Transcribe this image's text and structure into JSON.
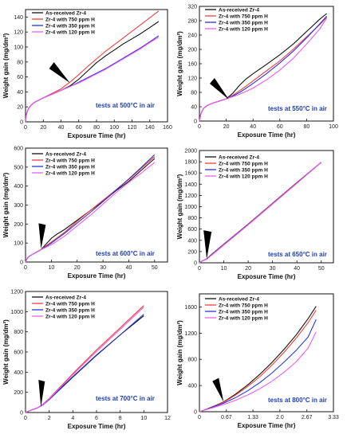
{
  "legend_labels": [
    "As-received Zr-4",
    "Zr-4 with 750 ppm H",
    "Zr-4 with 350 ppm H",
    "Zr-4 with 120 ppm H"
  ],
  "series_colors": [
    "#111111",
    "#f0403a",
    "#2a36d6",
    "#f05cf0"
  ],
  "chart_data": [
    {
      "type": "line",
      "xlabel": "Exposure Time (hr)",
      "ylabel": "Weight gain (mg/dm²)",
      "annotation": "tests at 500°C in air",
      "xlim": [
        0,
        160
      ],
      "ylim": [
        0,
        150
      ],
      "xticks": [
        0,
        20,
        40,
        60,
        80,
        100,
        120,
        140,
        160
      ],
      "xtick_labels": [
        "0",
        "20",
        "40",
        "60",
        "80",
        "100",
        "120",
        "140",
        "160"
      ],
      "yticks": [
        0,
        20,
        40,
        60,
        80,
        100,
        120,
        140
      ],
      "ytick_labels": [
        "0",
        "20",
        "40",
        "60",
        "80",
        "100",
        "120",
        "140"
      ],
      "arrow_tip": [
        50,
        52
      ],
      "series": [
        {
          "name": "As-received Zr-4",
          "x": [
            0,
            1,
            3,
            6,
            10,
            15,
            20,
            30,
            40,
            50,
            60,
            70,
            80,
            90,
            100,
            110,
            120,
            130,
            140,
            150
          ],
          "y": [
            0,
            10,
            17,
            22,
            26,
            29,
            32,
            37,
            42,
            48,
            57,
            68,
            79,
            88,
            96,
            104,
            111,
            118,
            126,
            134
          ]
        },
        {
          "name": "Zr-4 with 750 ppm H",
          "x": [
            0,
            1,
            3,
            6,
            10,
            15,
            20,
            30,
            40,
            50,
            60,
            70,
            80,
            90,
            100,
            110,
            120,
            130,
            140,
            150
          ],
          "y": [
            0,
            10,
            17,
            22,
            26,
            29,
            32,
            38,
            44,
            53,
            63,
            74,
            84,
            94,
            103,
            112,
            121,
            130,
            139,
            148
          ]
        },
        {
          "name": "Zr-4 with 350 ppm H",
          "x": [
            0,
            1,
            3,
            6,
            10,
            15,
            20,
            30,
            40,
            50,
            60,
            70,
            80,
            90,
            100,
            110,
            120,
            130,
            140,
            150
          ],
          "y": [
            0,
            10,
            17,
            22,
            26,
            29,
            32,
            37,
            42,
            47,
            53,
            59,
            65,
            71,
            78,
            85,
            92,
            99,
            107,
            115
          ]
        },
        {
          "name": "Zr-4 with 120 ppm H",
          "x": [
            0,
            1,
            3,
            6,
            10,
            15,
            20,
            30,
            40,
            50,
            60,
            70,
            80,
            90,
            100,
            110,
            120,
            130,
            140,
            150
          ],
          "y": [
            0,
            10,
            17,
            22,
            26,
            29,
            32,
            37,
            42,
            47,
            52,
            58,
            64,
            70,
            77,
            84,
            91,
            98,
            106,
            113
          ]
        }
      ]
    },
    {
      "type": "line",
      "xlabel": "Exposure Time (hr)",
      "ylabel": "Weight gain (mg/dm²)",
      "annotation": "tests at 550°C in air",
      "xlim": [
        0,
        100
      ],
      "ylim": [
        0,
        320
      ],
      "xticks": [
        0,
        20,
        40,
        60,
        80,
        100
      ],
      "xtick_labels": [
        "0",
        "20",
        "40",
        "60",
        "80",
        "100"
      ],
      "yticks": [
        0,
        40,
        80,
        120,
        160,
        200,
        240,
        280,
        320
      ],
      "ytick_labels": [
        "0",
        "40",
        "80",
        "120",
        "160",
        "200",
        "240",
        "280",
        "320"
      ],
      "arrow_tip": [
        22,
        60
      ],
      "series": [
        {
          "name": "As-received Zr-4",
          "x": [
            0,
            1,
            3,
            6,
            10,
            15,
            20,
            25,
            30,
            35,
            40,
            50,
            60,
            70,
            80,
            90,
            95
          ],
          "y": [
            0,
            20,
            35,
            44,
            50,
            56,
            62,
            78,
            100,
            118,
            132,
            158,
            185,
            215,
            250,
            285,
            300
          ]
        },
        {
          "name": "Zr-4 with 750 ppm H",
          "x": [
            0,
            1,
            3,
            6,
            10,
            15,
            20,
            25,
            30,
            35,
            40,
            50,
            60,
            70,
            80,
            90,
            95
          ],
          "y": [
            0,
            20,
            35,
            44,
            50,
            56,
            62,
            72,
            85,
            98,
            112,
            140,
            168,
            200,
            235,
            270,
            290
          ]
        },
        {
          "name": "Zr-4 with 350 ppm H",
          "x": [
            0,
            1,
            3,
            6,
            10,
            15,
            20,
            25,
            30,
            35,
            40,
            50,
            60,
            70,
            80,
            90,
            95
          ],
          "y": [
            0,
            20,
            35,
            44,
            50,
            56,
            62,
            70,
            80,
            92,
            105,
            132,
            162,
            195,
            232,
            272,
            293
          ]
        },
        {
          "name": "Zr-4 with 120 ppm H",
          "x": [
            0,
            1,
            3,
            6,
            10,
            15,
            20,
            25,
            30,
            35,
            40,
            50,
            60,
            70,
            80,
            90,
            95
          ],
          "y": [
            0,
            20,
            35,
            44,
            50,
            56,
            62,
            68,
            75,
            83,
            92,
            115,
            142,
            175,
            215,
            258,
            288
          ]
        }
      ]
    },
    {
      "type": "line",
      "xlabel": "Exposure Time (hr)",
      "ylabel": "Weight gain (mg/dm²)",
      "annotation": "tests at 600°C in air",
      "xlim": [
        0,
        55
      ],
      "ylim": [
        0,
        600
      ],
      "xticks": [
        0,
        10,
        20,
        30,
        40,
        50
      ],
      "xtick_labels": [
        "0",
        "10",
        "20",
        "30",
        "40",
        "50"
      ],
      "yticks": [
        0,
        100,
        200,
        300,
        400,
        500,
        600
      ],
      "ytick_labels": [
        "0",
        "100",
        "200",
        "300",
        "400",
        "500",
        "600"
      ],
      "arrow_tip": [
        6,
        70
      ],
      "series": [
        {
          "name": "As-received Zr-4",
          "x": [
            0,
            0.5,
            1,
            2,
            4,
            6,
            8,
            10,
            12,
            15,
            20,
            25,
            30,
            35,
            40,
            45,
            50
          ],
          "y": [
            0,
            15,
            25,
            35,
            50,
            65,
            95,
            125,
            145,
            170,
            220,
            270,
            320,
            375,
            425,
            485,
            545
          ]
        },
        {
          "name": "Zr-4 with 750 ppm H",
          "x": [
            0,
            0.5,
            1,
            2,
            4,
            6,
            8,
            10,
            12,
            15,
            20,
            25,
            30,
            35,
            40,
            45,
            50
          ],
          "y": [
            0,
            15,
            25,
            35,
            50,
            65,
            85,
            105,
            125,
            155,
            215,
            270,
            325,
            380,
            435,
            495,
            555
          ]
        },
        {
          "name": "Zr-4 with 350 ppm H",
          "x": [
            0,
            0.5,
            1,
            2,
            4,
            6,
            8,
            10,
            12,
            15,
            20,
            25,
            30,
            35,
            40,
            45,
            50
          ],
          "y": [
            0,
            15,
            25,
            35,
            50,
            65,
            82,
            100,
            120,
            150,
            205,
            260,
            318,
            378,
            438,
            500,
            565
          ]
        },
        {
          "name": "Zr-4 with 120 ppm H",
          "x": [
            0,
            0.5,
            1,
            2,
            4,
            6,
            8,
            10,
            12,
            15,
            20,
            25,
            30,
            35,
            40,
            45,
            50
          ],
          "y": [
            0,
            15,
            25,
            35,
            50,
            65,
            78,
            92,
            108,
            135,
            190,
            245,
            305,
            365,
            420,
            470,
            525
          ]
        }
      ]
    },
    {
      "type": "line",
      "xlabel": "Exposure Time (hr)",
      "ylabel": "Weight gain (mg/dm²)",
      "annotation": "tests at 650°C in air",
      "xlim": [
        0,
        55
      ],
      "ylim": [
        0,
        2000
      ],
      "xticks": [
        0,
        10,
        20,
        30,
        40,
        50
      ],
      "xtick_labels": [
        "0",
        "10",
        "20",
        "30",
        "40",
        "50"
      ],
      "yticks": [
        0,
        200,
        400,
        600,
        800,
        1000,
        1200,
        1400,
        1600,
        1800,
        2000
      ],
      "ytick_labels": [
        "0",
        "200",
        "400",
        "600",
        "800",
        "1000",
        "1200",
        "1400",
        "1600",
        "1800",
        "2000"
      ],
      "arrow_tip": [
        3,
        70
      ],
      "series": [
        {
          "name": "As-received Zr-4",
          "x": [
            0,
            1,
            2,
            3,
            5,
            10,
            20,
            30,
            40,
            50
          ],
          "y": [
            0,
            30,
            50,
            70,
            150,
            330,
            690,
            1060,
            1430,
            1790
          ]
        },
        {
          "name": "Zr-4 with 750 ppm H",
          "x": [
            0,
            1,
            2,
            3,
            5,
            10,
            20,
            30,
            40,
            50
          ],
          "y": [
            0,
            30,
            50,
            68,
            145,
            325,
            685,
            1055,
            1425,
            1790
          ]
        },
        {
          "name": "Zr-4 with 350 ppm H",
          "x": [
            0,
            1,
            2,
            3,
            5,
            10,
            20,
            30,
            40,
            50
          ],
          "y": [
            0,
            30,
            50,
            66,
            140,
            320,
            680,
            1050,
            1420,
            1790
          ]
        },
        {
          "name": "Zr-4 with 120 ppm H",
          "x": [
            0,
            1,
            2,
            3,
            5,
            10,
            20,
            30,
            40,
            50
          ],
          "y": [
            0,
            30,
            50,
            64,
            135,
            315,
            675,
            1045,
            1415,
            1790
          ]
        }
      ]
    },
    {
      "type": "line",
      "xlabel": "Exposure Time (hr)",
      "ylabel": "Weight gain (mg/dm²)",
      "annotation": "tests at 700°C in air",
      "xlim": [
        0,
        12
      ],
      "ylim": [
        0,
        1200
      ],
      "xticks": [
        0,
        2,
        4,
        6,
        8,
        10,
        12
      ],
      "xtick_labels": [
        "0",
        "2",
        "4",
        "6",
        "8",
        "10",
        "12"
      ],
      "yticks": [
        0,
        200,
        400,
        600,
        800,
        1000,
        1200
      ],
      "ytick_labels": [
        "0",
        "200",
        "400",
        "600",
        "800",
        "1000",
        "1200"
      ],
      "arrow_tip": [
        1.3,
        55
      ],
      "series": [
        {
          "name": "As-received Zr-4",
          "x": [
            0,
            0.5,
            1,
            1.5,
            2,
            4,
            6,
            8,
            10
          ],
          "y": [
            0,
            25,
            45,
            80,
            135,
            355,
            570,
            770,
            960
          ]
        },
        {
          "name": "Zr-4 with 750 ppm H",
          "x": [
            0,
            0.5,
            1,
            1.5,
            2,
            4,
            6,
            8,
            10
          ],
          "y": [
            0,
            25,
            45,
            85,
            140,
            385,
            620,
            840,
            1060
          ]
        },
        {
          "name": "Zr-4 with 350 ppm H",
          "x": [
            0,
            0.5,
            1,
            1.5,
            2,
            4,
            6,
            8,
            10
          ],
          "y": [
            0,
            25,
            45,
            78,
            128,
            350,
            565,
            770,
            975
          ]
        },
        {
          "name": "Zr-4 with 120 ppm H",
          "x": [
            0,
            0.5,
            1,
            1.5,
            2,
            4,
            6,
            8,
            10
          ],
          "y": [
            0,
            25,
            45,
            82,
            135,
            375,
            605,
            825,
            1045
          ]
        }
      ]
    },
    {
      "type": "line",
      "xlabel": "Exposure Time (hr)",
      "ylabel": "Weight gain (mg/dm²)",
      "annotation": "tests at 800°C in air",
      "xlim": [
        0,
        3.33
      ],
      "ylim": [
        0,
        1800
      ],
      "xticks": [
        0,
        0.67,
        1.33,
        2.0,
        2.67,
        3.33
      ],
      "xtick_labels": [
        "0",
        "0.67",
        "1.33",
        "2.0",
        "2.67",
        "3.33"
      ],
      "yticks": [
        0,
        400,
        800,
        1200,
        1600
      ],
      "ytick_labels": [
        "0",
        "400",
        "800",
        "1200",
        "1600"
      ],
      "arrow_tip": [
        0.6,
        150
      ],
      "series": [
        {
          "name": "As-received Zr-4",
          "x": [
            0,
            0.1,
            0.3,
            0.6,
            0.9,
            1.2,
            1.5,
            1.8,
            2.1,
            2.4,
            2.7,
            2.9
          ],
          "y": [
            0,
            20,
            70,
            150,
            270,
            410,
            570,
            750,
            950,
            1170,
            1420,
            1610
          ]
        },
        {
          "name": "Zr-4 with 750 ppm H",
          "x": [
            0,
            0.1,
            0.3,
            0.6,
            0.9,
            1.2,
            1.5,
            1.8,
            2.1,
            2.4,
            2.7,
            2.9
          ],
          "y": [
            0,
            20,
            70,
            145,
            255,
            385,
            535,
            710,
            905,
            1120,
            1360,
            1550
          ]
        },
        {
          "name": "Zr-4 with 350 ppm H",
          "x": [
            0,
            0.1,
            0.3,
            0.6,
            0.9,
            1.2,
            1.5,
            1.8,
            2.1,
            2.4,
            2.7,
            2.9
          ],
          "y": [
            0,
            20,
            65,
            130,
            215,
            320,
            445,
            590,
            755,
            935,
            1140,
            1410
          ]
        },
        {
          "name": "Zr-4 with 120 ppm H",
          "x": [
            0,
            0.1,
            0.3,
            0.6,
            0.9,
            1.2,
            1.5,
            1.8,
            2.1,
            2.4,
            2.7,
            2.9
          ],
          "y": [
            0,
            20,
            55,
            110,
            175,
            255,
            350,
            465,
            600,
            760,
            970,
            1220
          ]
        }
      ]
    }
  ]
}
